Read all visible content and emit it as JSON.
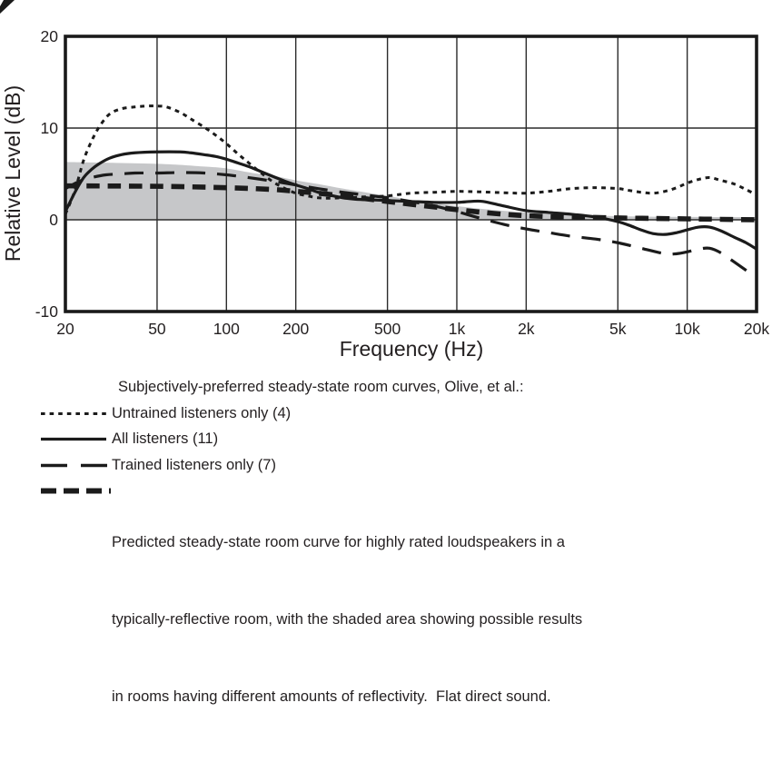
{
  "colors": {
    "ink": "#231f20",
    "curve": "#1b1b1b",
    "grid": "#2b2b2b",
    "shade": "#c6c7c9"
  },
  "chart_data": {
    "type": "line",
    "title": "Subjectively-preferred steady-state room curves, Olive, et al.:",
    "xlabel": "Frequency (Hz)",
    "ylabel": "Relative Level (dB)",
    "x_scale": "log",
    "xlim": [
      20,
      20000
    ],
    "ylim": [
      -10,
      20
    ],
    "grid": true,
    "x_ticks": [
      {
        "value": 20,
        "label": "20"
      },
      {
        "value": 50,
        "label": "50"
      },
      {
        "value": 100,
        "label": "100"
      },
      {
        "value": 200,
        "label": "200"
      },
      {
        "value": 500,
        "label": "500"
      },
      {
        "value": 1000,
        "label": "1k"
      },
      {
        "value": 2000,
        "label": "2k"
      },
      {
        "value": 5000,
        "label": "5k"
      },
      {
        "value": 10000,
        "label": "10k"
      },
      {
        "value": 20000,
        "label": "20k"
      }
    ],
    "y_ticks": [
      {
        "value": 20,
        "label": "20"
      },
      {
        "value": 10,
        "label": "10"
      },
      {
        "value": 0,
        "label": "0"
      },
      {
        "value": -10,
        "label": "-10"
      }
    ],
    "shaded_area": {
      "color": "#c6c7c9",
      "bottom_db": 0,
      "top_edge_db_by_hz": [
        [
          20,
          6.3
        ],
        [
          50,
          6.1
        ],
        [
          80,
          5.8
        ],
        [
          100,
          5.6
        ],
        [
          130,
          5.1
        ],
        [
          160,
          4.8
        ],
        [
          200,
          4.3
        ],
        [
          250,
          3.9
        ],
        [
          320,
          3.4
        ],
        [
          400,
          3.0
        ],
        [
          500,
          2.6
        ],
        [
          700,
          2.0
        ],
        [
          1000,
          1.5
        ],
        [
          1400,
          1.1
        ],
        [
          2000,
          0.8
        ],
        [
          3000,
          0.55
        ],
        [
          5000,
          0.4
        ],
        [
          8000,
          0.33
        ],
        [
          12000,
          0.3
        ],
        [
          20000,
          0.3
        ]
      ]
    },
    "series": [
      {
        "name": "Untrained listeners only (4)",
        "style": "dotted",
        "points": [
          [
            20,
            0.6
          ],
          [
            22,
            3.2
          ],
          [
            24,
            6.5
          ],
          [
            26,
            8.6
          ],
          [
            28,
            10.1
          ],
          [
            31,
            11.5
          ],
          [
            35,
            12.1
          ],
          [
            40,
            12.3
          ],
          [
            45,
            12.4
          ],
          [
            50,
            12.4
          ],
          [
            55,
            12.3
          ],
          [
            63,
            11.7
          ],
          [
            70,
            11.0
          ],
          [
            80,
            10.1
          ],
          [
            90,
            9.2
          ],
          [
            100,
            8.3
          ],
          [
            112,
            7.2
          ],
          [
            125,
            6.2
          ],
          [
            140,
            5.2
          ],
          [
            160,
            4.1
          ],
          [
            180,
            3.4
          ],
          [
            200,
            2.9
          ],
          [
            225,
            2.6
          ],
          [
            250,
            2.4
          ],
          [
            280,
            2.35
          ],
          [
            320,
            2.4
          ],
          [
            400,
            2.5
          ],
          [
            500,
            2.6
          ],
          [
            630,
            2.9
          ],
          [
            800,
            3.0
          ],
          [
            1000,
            3.1
          ],
          [
            1250,
            3.05
          ],
          [
            1600,
            2.95
          ],
          [
            2000,
            2.9
          ],
          [
            2500,
            3.1
          ],
          [
            3150,
            3.4
          ],
          [
            4000,
            3.5
          ],
          [
            5000,
            3.4
          ],
          [
            5600,
            3.2
          ],
          [
            6300,
            3.0
          ],
          [
            7100,
            2.9
          ],
          [
            8000,
            3.1
          ],
          [
            9000,
            3.5
          ],
          [
            10000,
            4.0
          ],
          [
            11200,
            4.4
          ],
          [
            12500,
            4.6
          ],
          [
            14000,
            4.3
          ],
          [
            16000,
            3.9
          ],
          [
            18000,
            3.3
          ],
          [
            20000,
            2.7
          ]
        ]
      },
      {
        "name": "All listeners (11)",
        "style": "solid",
        "points": [
          [
            20,
            0.9
          ],
          [
            22,
            3.0
          ],
          [
            24,
            4.6
          ],
          [
            26,
            5.5
          ],
          [
            28,
            6.1
          ],
          [
            31,
            6.7
          ],
          [
            35,
            7.1
          ],
          [
            40,
            7.3
          ],
          [
            50,
            7.4
          ],
          [
            63,
            7.4
          ],
          [
            70,
            7.3
          ],
          [
            80,
            7.1
          ],
          [
            90,
            6.9
          ],
          [
            100,
            6.6
          ],
          [
            112,
            6.2
          ],
          [
            125,
            5.8
          ],
          [
            140,
            5.3
          ],
          [
            160,
            4.7
          ],
          [
            180,
            4.2
          ],
          [
            200,
            3.8
          ],
          [
            225,
            3.4
          ],
          [
            250,
            3.0
          ],
          [
            280,
            2.7
          ],
          [
            320,
            2.4
          ],
          [
            360,
            2.25
          ],
          [
            400,
            2.2
          ],
          [
            500,
            2.1
          ],
          [
            630,
            2.0
          ],
          [
            800,
            1.9
          ],
          [
            1000,
            1.9
          ],
          [
            1150,
            2.0
          ],
          [
            1300,
            2.0
          ],
          [
            1600,
            1.5
          ],
          [
            2000,
            1.0
          ],
          [
            2500,
            0.8
          ],
          [
            3150,
            0.6
          ],
          [
            4000,
            0.3
          ],
          [
            5000,
            -0.2
          ],
          [
            5600,
            -0.6
          ],
          [
            6300,
            -1.1
          ],
          [
            7100,
            -1.5
          ],
          [
            8000,
            -1.6
          ],
          [
            9000,
            -1.4
          ],
          [
            10000,
            -1.1
          ],
          [
            11200,
            -0.8
          ],
          [
            12500,
            -0.8
          ],
          [
            14000,
            -1.2
          ],
          [
            16000,
            -1.9
          ],
          [
            18000,
            -2.5
          ],
          [
            20000,
            -3.2
          ]
        ]
      },
      {
        "name": "Trained listeners only (7)",
        "style": "long-dash",
        "points": [
          [
            20,
            3.4
          ],
          [
            23,
            4.2
          ],
          [
            26,
            4.6
          ],
          [
            30,
            4.9
          ],
          [
            35,
            5.0
          ],
          [
            40,
            5.1
          ],
          [
            50,
            5.1
          ],
          [
            63,
            5.15
          ],
          [
            80,
            5.1
          ],
          [
            100,
            4.9
          ],
          [
            125,
            4.6
          ],
          [
            160,
            4.2
          ],
          [
            200,
            3.8
          ],
          [
            250,
            3.4
          ],
          [
            320,
            3.0
          ],
          [
            400,
            2.7
          ],
          [
            500,
            2.4
          ],
          [
            630,
            2.0
          ],
          [
            800,
            1.5
          ],
          [
            1000,
            0.9
          ],
          [
            1250,
            0.2
          ],
          [
            1600,
            -0.5
          ],
          [
            2000,
            -1.0
          ],
          [
            2500,
            -1.4
          ],
          [
            3150,
            -1.8
          ],
          [
            4000,
            -2.1
          ],
          [
            5000,
            -2.5
          ],
          [
            6300,
            -3.1
          ],
          [
            8000,
            -3.7
          ],
          [
            9000,
            -3.7
          ],
          [
            10000,
            -3.5
          ],
          [
            11200,
            -3.2
          ],
          [
            12500,
            -3.1
          ],
          [
            14000,
            -3.6
          ],
          [
            16000,
            -4.6
          ],
          [
            18000,
            -5.5
          ],
          [
            20000,
            -6.3
          ]
        ]
      },
      {
        "name": "Predicted steady-state room curve for highly rated loudspeakers in a typically-reflective room, with the shaded area showing possible results in rooms having different amounts of reflectivity.  Flat direct sound.",
        "style": "thick-dash",
        "points": [
          [
            20,
            3.7
          ],
          [
            50,
            3.65
          ],
          [
            100,
            3.5
          ],
          [
            160,
            3.3
          ],
          [
            200,
            3.1
          ],
          [
            250,
            2.9
          ],
          [
            320,
            2.6
          ],
          [
            400,
            2.3
          ],
          [
            500,
            2.0
          ],
          [
            630,
            1.7
          ],
          [
            800,
            1.4
          ],
          [
            1000,
            1.1
          ],
          [
            1250,
            0.85
          ],
          [
            1600,
            0.6
          ],
          [
            2000,
            0.45
          ],
          [
            2500,
            0.35
          ],
          [
            3150,
            0.3
          ],
          [
            4000,
            0.25
          ],
          [
            5000,
            0.2
          ],
          [
            7000,
            0.15
          ],
          [
            10000,
            0.1
          ],
          [
            14000,
            0.05
          ],
          [
            20000,
            0.0
          ]
        ]
      }
    ]
  },
  "legend": {
    "header": "Subjectively-preferred steady-state room curves, Olive, et al.:",
    "items": [
      {
        "style": "dotted",
        "label": "Untrained listeners only (4)"
      },
      {
        "style": "solid",
        "label": "All listeners (11)"
      },
      {
        "style": "long-dash",
        "label": "Trained listeners only (7)"
      },
      {
        "style": "thick-dash",
        "label_lines": [
          "Predicted steady-state room curve for highly rated loudspeakers in a",
          "typically-reflective room, with the shaded area showing possible results",
          "in rooms having different amounts of reflectivity.  Flat direct sound."
        ]
      }
    ]
  }
}
